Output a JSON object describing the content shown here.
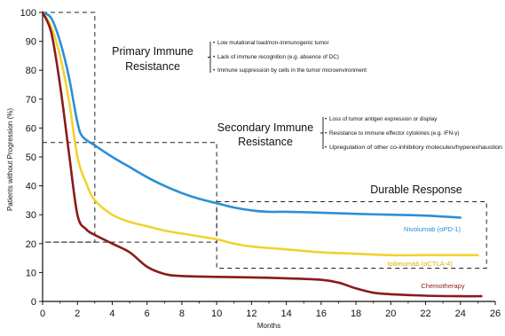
{
  "chart_data": {
    "type": "line",
    "title": "",
    "xlabel": "Months",
    "ylabel": "Patients without Progression (%)",
    "xlim": [
      0,
      26
    ],
    "ylim": [
      0,
      100
    ],
    "xticks": [
      0,
      2,
      4,
      6,
      8,
      10,
      12,
      14,
      16,
      18,
      20,
      22,
      24,
      26
    ],
    "yticks": [
      0,
      10,
      20,
      30,
      40,
      50,
      60,
      70,
      80,
      90,
      100
    ],
    "grid": false,
    "series": [
      {
        "name": "Nivolumab (αPD-1)",
        "color": "#2b8fd6",
        "x": [
          0,
          0.5,
          1,
          1.5,
          2,
          2.3,
          3,
          4,
          5,
          6,
          7,
          8,
          9,
          10,
          11,
          12,
          13,
          14,
          16,
          18,
          20,
          22,
          24
        ],
        "y": [
          100,
          98,
          90,
          78,
          62,
          57,
          54,
          50,
          46.5,
          43,
          40,
          37.5,
          35.5,
          34,
          32.5,
          31.5,
          31,
          31,
          30.7,
          30.3,
          30,
          29.7,
          29
        ]
      },
      {
        "name": "Ipilimumab (αCTLA-4)",
        "color": "#f2d230",
        "x": [
          0,
          0.5,
          1,
          1.5,
          2,
          2.5,
          3,
          4,
          5,
          6,
          7,
          8,
          9,
          10,
          11,
          12,
          14,
          16,
          18,
          20,
          22,
          24,
          25
        ],
        "y": [
          100,
          95,
          85,
          70,
          50,
          41,
          35,
          30,
          27.5,
          26,
          24.5,
          23.5,
          22.5,
          21.5,
          20,
          19,
          18,
          17,
          16.5,
          16,
          16,
          16,
          16
        ]
      },
      {
        "name": "Chemotherapy",
        "color": "#8b1a1a",
        "x": [
          0,
          0.5,
          1,
          1.5,
          2,
          2.5,
          3,
          4,
          5,
          6,
          7,
          8,
          10,
          12,
          14,
          16,
          17,
          18,
          19,
          20,
          22,
          24,
          25.2
        ],
        "y": [
          100,
          93,
          75,
          52,
          30,
          25,
          23,
          20,
          17,
          12,
          9.5,
          8.8,
          8.5,
          8.3,
          8,
          7.5,
          6.5,
          4.5,
          3,
          2.5,
          2,
          1.8,
          1.8
        ]
      }
    ],
    "regions": [
      {
        "name": "Primary Immune Resistance",
        "x": [
          0,
          3
        ],
        "y": [
          20.5,
          100
        ]
      },
      {
        "name": "Secondary Immune Resistance",
        "x": [
          0,
          10
        ],
        "y": [
          20.5,
          55
        ]
      },
      {
        "name": "Durable Response",
        "x": [
          10,
          25.5
        ],
        "y": [
          11.5,
          34.5
        ]
      }
    ],
    "annotations": {
      "primary": {
        "title_lines": [
          "Primary Immune",
          "Resistance"
        ],
        "bullets": [
          "Low mutational load/non-immunogenic tumor",
          "Lack of immune recognition (e.g. absence of DC)",
          "Immune suppression by cells in the tumor microenvironment"
        ]
      },
      "secondary": {
        "title_lines": [
          "Secondary Immune",
          "Resistance"
        ],
        "bullets": [
          "Loss of tumor antigen expression or display",
          "Resistance to immune effector cytokines (e.g. IFN-γ)",
          "Upregulation of other co-inhibitory molecules/hyperexhaustion"
        ]
      },
      "durable": {
        "title": "Durable Response"
      }
    }
  }
}
